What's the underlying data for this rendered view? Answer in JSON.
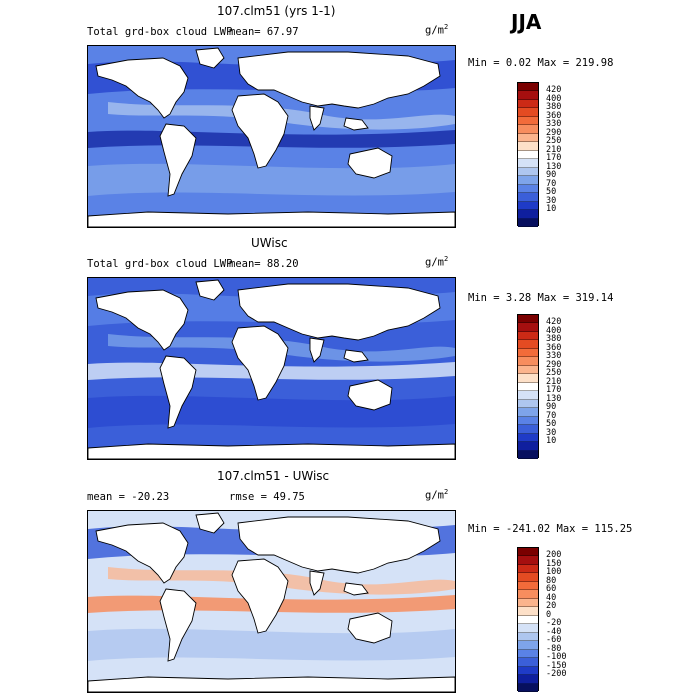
{
  "season_label": "JJA",
  "panels": [
    {
      "title": "107.clm51 (yrs 1-1)",
      "left_label": "Total grd-box cloud LWP",
      "stat_text": "mean=  67.97",
      "unit_base": "g/m",
      "unit_exp": "2",
      "minmax": "Min =   0.02 Max = 219.98",
      "colorbar": {
        "labels": [
          "420",
          "400",
          "380",
          "360",
          "330",
          "290",
          "250",
          "210",
          "170",
          "130",
          "90",
          "70",
          "50",
          "30",
          "10"
        ],
        "colors": [
          "#7a0000",
          "#a50f0f",
          "#cc2a16",
          "#e44b22",
          "#f26b3a",
          "#f78d5e",
          "#fbb48d",
          "#fde0c8",
          "#ffffff",
          "#d5e2f7",
          "#aec6ef",
          "#7ea4ea",
          "#5a82e6",
          "#3b5fd9",
          "#1f3bc7",
          "#0f1f9e",
          "#07105f"
        ]
      },
      "fields": {
        "ocean_base": "#5a82e6",
        "band_a": "#2a49cf",
        "band_b": "#1a2fa8",
        "band_c": "#7ea4ea",
        "band_d": "#aec6ef"
      }
    },
    {
      "title": "UWisc",
      "left_label": "Total grd-box cloud LWP",
      "stat_text": "mean=  88.20",
      "unit_base": "g/m",
      "unit_exp": "2",
      "minmax": "Min =   3.28 Max = 319.14",
      "colorbar": {
        "labels": [
          "420",
          "400",
          "380",
          "360",
          "330",
          "290",
          "250",
          "210",
          "170",
          "130",
          "90",
          "70",
          "50",
          "30",
          "10"
        ],
        "colors": [
          "#7a0000",
          "#a50f0f",
          "#cc2a16",
          "#e44b22",
          "#f26b3a",
          "#f78d5e",
          "#fbb48d",
          "#fde0c8",
          "#ffffff",
          "#d5e2f7",
          "#aec6ef",
          "#7ea4ea",
          "#5a82e6",
          "#3b5fd9",
          "#1f3bc7",
          "#0f1f9e",
          "#07105f"
        ]
      },
      "fields": {
        "ocean_base": "#3b5fd9",
        "band_a": "#5a82e6",
        "band_b": "#d5e2f7",
        "band_c": "#2a49cf",
        "band_d": "#7ea4ea"
      }
    },
    {
      "title": "107.clm51 - UWisc",
      "left_label": "mean = -20.23",
      "stat_text": "rmse =  49.75",
      "unit_base": "g/m",
      "unit_exp": "2",
      "minmax": "Min = -241.02 Max = 115.25",
      "colorbar": {
        "labels": [
          "200",
          "150",
          "100",
          "80",
          "60",
          "40",
          "20",
          "0",
          "-20",
          "-40",
          "-60",
          "-80",
          "-100",
          "-150",
          "-200"
        ],
        "colors": [
          "#7a0000",
          "#a50f0f",
          "#cc2a16",
          "#e44b22",
          "#f26b3a",
          "#f78d5e",
          "#fbb48d",
          "#fde0c8",
          "#ffffff",
          "#d5e2f7",
          "#aec6ef",
          "#7ea4ea",
          "#5a82e6",
          "#3b5fd9",
          "#1f3bc7",
          "#0f1f9e",
          "#07105f"
        ]
      },
      "fields": {
        "ocean_base": "#d5e2f7",
        "band_a": "#3b5fd9",
        "band_b": "#f78d5e",
        "band_c": "#aec6ef",
        "band_d": "#fbb48d"
      }
    }
  ]
}
